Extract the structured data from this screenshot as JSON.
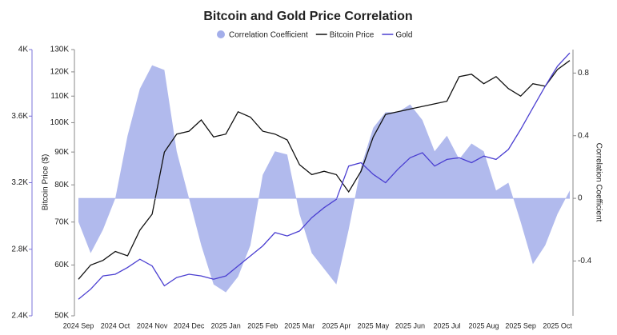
{
  "chart_data": {
    "type": "line",
    "title": "Bitcoin and Gold Price Correlation",
    "y_label": "Bitcoin Price ($)",
    "y2_label": "Correlation Coefficient",
    "log_scale": true,
    "grid": false,
    "legend": "top",
    "categories": [
      "2024 Sep",
      null,
      null,
      "2024 Oct",
      null,
      null,
      "2024 Nov",
      null,
      null,
      "2024 Dec",
      null,
      null,
      "2025 Jan",
      null,
      null,
      "2025 Feb",
      null,
      null,
      "2025 Mar",
      null,
      null,
      "2025 Apr",
      null,
      null,
      "2025 May",
      null,
      null,
      "2025 Jun",
      null,
      null,
      "2025 Jul",
      null,
      null,
      "2025 Aug",
      null,
      null,
      "2025 Sep",
      null,
      null,
      "2025 Oct",
      null
    ],
    "ylim": [
      50000,
      130000
    ],
    "yticks": [
      {
        "value": 50000,
        "label": "50K"
      },
      {
        "value": 60000,
        "label": "60K"
      },
      {
        "value": 70000,
        "label": "70K"
      },
      {
        "value": 80000,
        "label": "80K"
      },
      {
        "value": 90000,
        "label": "90K"
      },
      {
        "value": 100000,
        "label": "100K"
      },
      {
        "value": 110000,
        "label": "110K"
      },
      {
        "value": 120000,
        "label": "120K"
      },
      {
        "value": 130000,
        "label": "130K"
      }
    ],
    "y2lim": [
      -0.75,
      0.95
    ],
    "y2ticks": [
      -0.4,
      0,
      0.4,
      0.8
    ],
    "y3lim": [
      2400,
      4000
    ],
    "y3ticks": [
      {
        "value": 2400,
        "label": "2.4K"
      },
      {
        "value": 2800,
        "label": "2.8K"
      },
      {
        "value": 3200,
        "label": "3.2K"
      },
      {
        "value": 3600,
        "label": "3.6K"
      },
      {
        "value": 4000,
        "label": "4K"
      }
    ],
    "series": [
      {
        "name": "Correlation Coefficient",
        "type": "area",
        "axis": "y2",
        "color": "#a3aeea",
        "values": [
          -0.15,
          -0.35,
          -0.2,
          0.0,
          0.4,
          0.7,
          0.85,
          0.82,
          0.3,
          0.0,
          -0.3,
          -0.55,
          -0.6,
          -0.5,
          -0.3,
          0.15,
          0.3,
          0.28,
          -0.1,
          -0.35,
          -0.45,
          -0.55,
          -0.2,
          0.2,
          0.45,
          0.55,
          0.55,
          0.6,
          0.5,
          0.3,
          0.4,
          0.25,
          0.35,
          0.3,
          0.05,
          0.1,
          -0.15,
          -0.42,
          -0.3,
          -0.1,
          0.05
        ]
      },
      {
        "name": "Bitcoin Price",
        "type": "line",
        "axis": "y",
        "color": "#111111",
        "values": [
          57000,
          60000,
          61000,
          63000,
          62000,
          68000,
          72000,
          90000,
          96000,
          97000,
          101000,
          95000,
          96000,
          104000,
          102000,
          97000,
          96000,
          94000,
          86000,
          83000,
          84000,
          83000,
          78000,
          84000,
          95000,
          103000,
          104000,
          105000,
          106000,
          107000,
          108000,
          118000,
          119000,
          115000,
          118000,
          113000,
          110000,
          115000,
          114000,
          121000,
          125000
        ]
      },
      {
        "name": "Gold",
        "type": "line",
        "axis": "y3",
        "color": "#4b3fd1",
        "values": [
          2500,
          2560,
          2640,
          2650,
          2690,
          2740,
          2700,
          2580,
          2630,
          2650,
          2640,
          2620,
          2640,
          2700,
          2760,
          2820,
          2900,
          2880,
          2910,
          2990,
          3050,
          3100,
          3300,
          3320,
          3250,
          3200,
          3280,
          3350,
          3380,
          3300,
          3340,
          3350,
          3320,
          3360,
          3340,
          3400,
          3520,
          3650,
          3780,
          3900,
          3980
        ]
      }
    ]
  }
}
